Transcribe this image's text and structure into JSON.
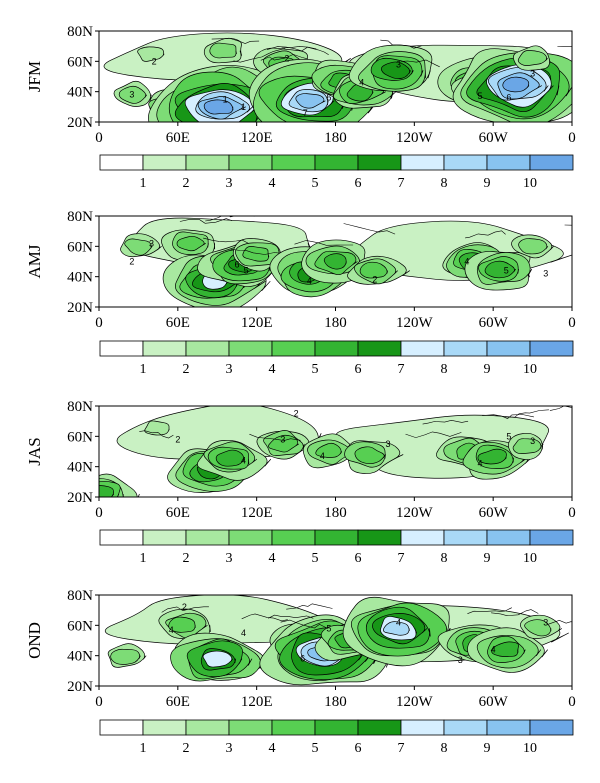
{
  "chart_data": [
    {
      "type": "heatmap",
      "season_label": "JFM",
      "ytick_labels": [
        "80N",
        "60N",
        "40N",
        "20N"
      ],
      "xtick_labels": [
        "0",
        "60E",
        "120E",
        "180",
        "120W",
        "60W",
        "0"
      ],
      "colorbar": {
        "levels": [
          1,
          2,
          3,
          4,
          5,
          6,
          7,
          8,
          9,
          10
        ],
        "colors": [
          "#ffffff",
          "#c9f1c3",
          "#a8e8a0",
          "#7ddc76",
          "#57cf52",
          "#33b432",
          "#179617",
          "#d6efff",
          "#a9d9f7",
          "#88c3f0",
          "#6aa6e6"
        ]
      },
      "regions": [
        {
          "lon": 40,
          "lat": 65,
          "level": 2
        },
        {
          "lon": 25,
          "lat": 38,
          "level": 3
        },
        {
          "lon": 55,
          "lat": 30,
          "level": 4
        },
        {
          "lon": 95,
          "lat": 67,
          "level": 3
        },
        {
          "lon": 90,
          "lat": 33,
          "level": 7
        },
        {
          "lon": 92,
          "lat": 30,
          "level": 10
        },
        {
          "lon": 140,
          "lat": 58,
          "level": 4
        },
        {
          "lon": 150,
          "lat": 37,
          "level": 7
        },
        {
          "lon": 160,
          "lat": 34,
          "level": 9
        },
        {
          "lon": 185,
          "lat": 47,
          "level": 5
        },
        {
          "lon": 200,
          "lat": 40,
          "level": 5
        },
        {
          "lon": 225,
          "lat": 54,
          "level": 6
        },
        {
          "lon": 285,
          "lat": 47,
          "level": 5
        },
        {
          "lon": 300,
          "lat": 38,
          "level": 6
        },
        {
          "lon": 318,
          "lat": 44,
          "level": 10
        },
        {
          "lon": 330,
          "lat": 62,
          "level": 3
        }
      ],
      "contour_labels": [
        {
          "lon": 42,
          "lat": 60,
          "text": "2"
        },
        {
          "lon": 25,
          "lat": 38,
          "text": "3"
        },
        {
          "lon": 96,
          "lat": 35,
          "text": "1"
        },
        {
          "lon": 110,
          "lat": 30,
          "text": "1"
        },
        {
          "lon": 143,
          "lat": 62,
          "text": "2"
        },
        {
          "lon": 157,
          "lat": 26,
          "text": "7"
        },
        {
          "lon": 175,
          "lat": 36,
          "text": "6"
        },
        {
          "lon": 200,
          "lat": 46,
          "text": "4"
        },
        {
          "lon": 228,
          "lat": 58,
          "text": "3"
        },
        {
          "lon": 290,
          "lat": 37,
          "text": "5"
        },
        {
          "lon": 312,
          "lat": 36,
          "text": "6"
        },
        {
          "lon": 330,
          "lat": 52,
          "text": "3"
        }
      ]
    },
    {
      "type": "heatmap",
      "season_label": "AMJ",
      "ytick_labels": [
        "80N",
        "60N",
        "40N",
        "20N"
      ],
      "xtick_labels": [
        "0",
        "60E",
        "120E",
        "180",
        "120W",
        "60W",
        "0"
      ],
      "colorbar": {
        "levels": [
          1,
          2,
          3,
          4,
          5,
          6,
          7,
          8,
          9,
          10
        ],
        "colors": [
          "#ffffff",
          "#c9f1c3",
          "#a8e8a0",
          "#7ddc76",
          "#57cf52",
          "#33b432",
          "#179617",
          "#d6efff",
          "#a9d9f7",
          "#88c3f0",
          "#6aa6e6"
        ]
      },
      "regions": [
        {
          "lon": 30,
          "lat": 60,
          "level": 3
        },
        {
          "lon": 70,
          "lat": 62,
          "level": 4
        },
        {
          "lon": 88,
          "lat": 37,
          "level": 7
        },
        {
          "lon": 110,
          "lat": 48,
          "level": 6
        },
        {
          "lon": 120,
          "lat": 55,
          "level": 4
        },
        {
          "lon": 160,
          "lat": 42,
          "level": 6
        },
        {
          "lon": 180,
          "lat": 50,
          "level": 5
        },
        {
          "lon": 210,
          "lat": 44,
          "level": 4
        },
        {
          "lon": 285,
          "lat": 50,
          "level": 5
        },
        {
          "lon": 305,
          "lat": 45,
          "level": 5
        },
        {
          "lon": 330,
          "lat": 60,
          "level": 3
        }
      ],
      "contour_labels": [
        {
          "lon": 40,
          "lat": 62,
          "text": "3"
        },
        {
          "lon": 25,
          "lat": 50,
          "text": "2"
        },
        {
          "lon": 105,
          "lat": 48,
          "text": "6"
        },
        {
          "lon": 112,
          "lat": 44,
          "text": "5"
        },
        {
          "lon": 160,
          "lat": 37,
          "text": "4"
        },
        {
          "lon": 210,
          "lat": 38,
          "text": "2"
        },
        {
          "lon": 280,
          "lat": 50,
          "text": "4"
        },
        {
          "lon": 310,
          "lat": 44,
          "text": "5"
        },
        {
          "lon": 340,
          "lat": 42,
          "text": "3"
        }
      ]
    },
    {
      "type": "heatmap",
      "season_label": "JAS",
      "ytick_labels": [
        "80N",
        "60N",
        "40N",
        "20N"
      ],
      "xtick_labels": [
        "0",
        "60E",
        "120E",
        "180",
        "120W",
        "60W",
        "0"
      ],
      "colorbar": {
        "levels": [
          1,
          2,
          3,
          4,
          5,
          6,
          7,
          8,
          9,
          10
        ],
        "colors": [
          "#ffffff",
          "#c9f1c3",
          "#a8e8a0",
          "#7ddc76",
          "#57cf52",
          "#33b432",
          "#179617",
          "#d6efff",
          "#a9d9f7",
          "#88c3f0",
          "#6aa6e6"
        ]
      },
      "regions": [
        {
          "lon": 45,
          "lat": 65,
          "level": 2
        },
        {
          "lon": 85,
          "lat": 38,
          "level": 6
        },
        {
          "lon": 100,
          "lat": 45,
          "level": 5
        },
        {
          "lon": 140,
          "lat": 55,
          "level": 4
        },
        {
          "lon": 175,
          "lat": 50,
          "level": 4
        },
        {
          "lon": 205,
          "lat": 48,
          "level": 4
        },
        {
          "lon": 280,
          "lat": 50,
          "level": 4
        },
        {
          "lon": 300,
          "lat": 46,
          "level": 5
        },
        {
          "lon": 325,
          "lat": 54,
          "level": 3
        },
        {
          "lon": 2,
          "lat": 22,
          "level": 5
        }
      ],
      "contour_labels": [
        {
          "lon": 150,
          "lat": 75,
          "text": "2"
        },
        {
          "lon": 60,
          "lat": 58,
          "text": "2"
        },
        {
          "lon": 110,
          "lat": 44,
          "text": "4"
        },
        {
          "lon": 140,
          "lat": 58,
          "text": "3"
        },
        {
          "lon": 170,
          "lat": 47,
          "text": "4"
        },
        {
          "lon": 220,
          "lat": 55,
          "text": "3"
        },
        {
          "lon": 290,
          "lat": 42,
          "text": "4"
        },
        {
          "lon": 312,
          "lat": 60,
          "text": "5"
        },
        {
          "lon": 330,
          "lat": 57,
          "text": "3"
        }
      ]
    },
    {
      "type": "heatmap",
      "season_label": "OND",
      "ytick_labels": [
        "80N",
        "60N",
        "40N",
        "20N"
      ],
      "xtick_labels": [
        "0",
        "60E",
        "120E",
        "180",
        "120W",
        "60W",
        "0"
      ],
      "colorbar": {
        "levels": [
          1,
          2,
          3,
          4,
          5,
          6,
          7,
          8,
          9,
          10
        ],
        "colors": [
          "#ffffff",
          "#c9f1c3",
          "#a8e8a0",
          "#7ddc76",
          "#57cf52",
          "#33b432",
          "#179617",
          "#d6efff",
          "#a9d9f7",
          "#88c3f0",
          "#6aa6e6"
        ]
      },
      "regions": [
        {
          "lon": 20,
          "lat": 40,
          "level": 3
        },
        {
          "lon": 65,
          "lat": 60,
          "level": 4
        },
        {
          "lon": 90,
          "lat": 38,
          "level": 7
        },
        {
          "lon": 160,
          "lat": 45,
          "level": 6
        },
        {
          "lon": 170,
          "lat": 42,
          "level": 9
        },
        {
          "lon": 190,
          "lat": 50,
          "level": 5
        },
        {
          "lon": 228,
          "lat": 58,
          "level": 8
        },
        {
          "lon": 285,
          "lat": 48,
          "level": 5
        },
        {
          "lon": 310,
          "lat": 44,
          "level": 5
        },
        {
          "lon": 335,
          "lat": 58,
          "level": 3
        }
      ],
      "contour_labels": [
        {
          "lon": 65,
          "lat": 72,
          "text": "2"
        },
        {
          "lon": 55,
          "lat": 57,
          "text": "4"
        },
        {
          "lon": 110,
          "lat": 55,
          "text": "4"
        },
        {
          "lon": 155,
          "lat": 38,
          "text": "6"
        },
        {
          "lon": 175,
          "lat": 58,
          "text": "5"
        },
        {
          "lon": 228,
          "lat": 62,
          "text": "4"
        },
        {
          "lon": 275,
          "lat": 37,
          "text": "3"
        },
        {
          "lon": 300,
          "lat": 44,
          "text": "4"
        },
        {
          "lon": 340,
          "lat": 62,
          "text": "3"
        }
      ]
    }
  ]
}
